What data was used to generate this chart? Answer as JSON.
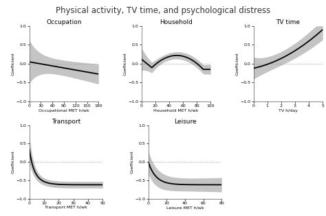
{
  "title": "Physical activity, TV time, and psychological distress",
  "title_fontsize": 8.5,
  "subplots": [
    {
      "name": "Occupation",
      "xlabel": "Occupational MET h/wk",
      "xlim": [
        0,
        180
      ],
      "xticks": [
        0,
        30,
        60,
        90,
        120,
        150,
        180
      ],
      "ylim": [
        -1.0,
        1.0
      ],
      "yticks": [
        -1.0,
        -0.5,
        0.0,
        0.5,
        1.0
      ],
      "curve_type": "occupation"
    },
    {
      "name": "Household",
      "xlabel": "Household MET h/wk",
      "xlim": [
        0,
        100
      ],
      "xticks": [
        0,
        20,
        40,
        60,
        80,
        100
      ],
      "ylim": [
        -1.0,
        1.0
      ],
      "yticks": [
        -1.0,
        -0.5,
        0.0,
        0.5,
        1.0
      ],
      "curve_type": "household"
    },
    {
      "name": "TV time",
      "xlabel": "TV h/day",
      "xlim": [
        0,
        5
      ],
      "xticks": [
        0,
        1,
        2,
        3,
        4,
        5
      ],
      "ylim": [
        -1.0,
        1.0
      ],
      "yticks": [
        -1.0,
        -0.5,
        0.0,
        0.5,
        1.0
      ],
      "curve_type": "tvtime"
    },
    {
      "name": "Transport",
      "xlabel": "Transport MET h/wk",
      "xlim": [
        0,
        50
      ],
      "xticks": [
        0,
        10,
        20,
        30,
        40,
        50
      ],
      "ylim": [
        -1.0,
        1.0
      ],
      "yticks": [
        -1.0,
        -0.5,
        0.0,
        0.5,
        1.0
      ],
      "curve_type": "transport"
    },
    {
      "name": "Leisure",
      "xlabel": "Leisure MET h/wk",
      "xlim": [
        0,
        80
      ],
      "xticks": [
        0,
        20,
        40,
        60,
        80
      ],
      "ylim": [
        -1.0,
        1.0
      ],
      "yticks": [
        -1.0,
        -0.5,
        0.0,
        0.5,
        1.0
      ],
      "curve_type": "leisure"
    }
  ],
  "line_color": "#000000",
  "ci_color": "#b0b0b0",
  "dotted_color": "#999999",
  "ylabel": "Coefficient",
  "background_color": "#ffffff"
}
